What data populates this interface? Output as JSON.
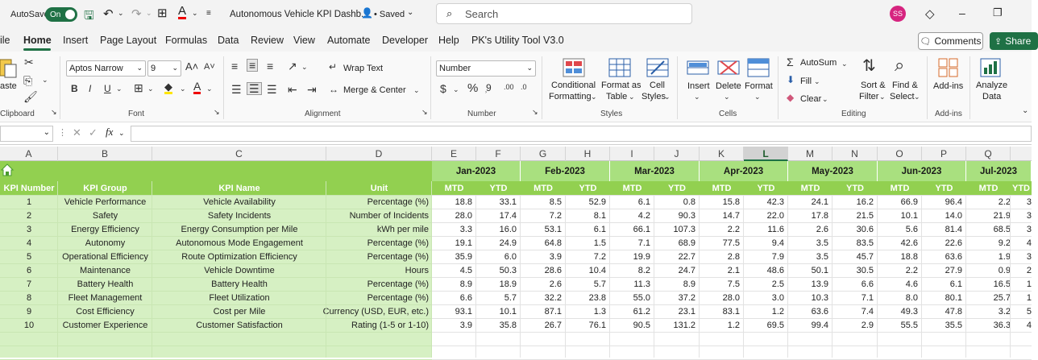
{
  "titlebar": {
    "autosave_label": "AutoSave",
    "autosave_state": "On",
    "doc_title": "Autonomous Vehicle KPI Dashb...",
    "save_status": "• Saved",
    "search_placeholder": "Search",
    "user_initials": "SS"
  },
  "menu": {
    "items": [
      "ile",
      "Home",
      "Insert",
      "Page Layout",
      "Formulas",
      "Data",
      "Review",
      "View",
      "Automate",
      "Developer",
      "Help",
      "PK's Utility Tool V3.0"
    ],
    "comments_label": "Comments",
    "share_label": "Share"
  },
  "ribbon": {
    "paste": "aste",
    "clipboard": "Clipboard",
    "font_name": "Aptos Narrow",
    "font_size": "9",
    "font_label": "Font",
    "wrap_text": "Wrap Text",
    "merge_center": "Merge & Center",
    "alignment_label": "Alignment",
    "number_format": "Number",
    "number_label": "Number",
    "conditional": "Conditional",
    "formatting": "Formatting",
    "format_as": "Format as",
    "table": "Table",
    "cell": "Cell",
    "styles_btn": "Styles",
    "styles_label": "Styles",
    "insert": "Insert",
    "delete": "Delete",
    "format": "Format",
    "cells_label": "Cells",
    "autosum": "AutoSum",
    "fill": "Fill",
    "clear": "Clear",
    "sort": "Sort &",
    "filter": "Filter",
    "find": "Find &",
    "select": "Select",
    "editing_label": "Editing",
    "addins": "Add-ins",
    "addins_label": "Add-ins",
    "analyze": "Analyze",
    "data_btn": "Data"
  },
  "formula_bar": {
    "fx": "fx"
  },
  "columns": [
    "A",
    "B",
    "C",
    "D",
    "E",
    "F",
    "G",
    "H",
    "I",
    "J",
    "K",
    "L",
    "M",
    "N",
    "O",
    "P",
    "Q"
  ],
  "selected_column": "L",
  "table": {
    "headers": [
      "KPI Number",
      "KPI Group",
      "KPI Name",
      "Unit"
    ],
    "months": [
      "Jan-2023",
      "Feb-2023",
      "Mar-2023",
      "Apr-2023",
      "May-2023",
      "Jun-2023",
      "Jul-2023"
    ],
    "sub_headers": [
      "MTD",
      "YTD"
    ],
    "rows": [
      {
        "num": "1",
        "group": "Vehicle Performance",
        "name": "Vehicle Availability",
        "unit": "Percentage (%)",
        "vals": [
          "18.8",
          "33.1",
          "8.5",
          "52.9",
          "6.1",
          "0.8",
          "15.8",
          "42.3",
          "24.1",
          "16.2",
          "66.9",
          "96.4",
          "2.2",
          "3"
        ]
      },
      {
        "num": "2",
        "group": "Safety",
        "name": "Safety Incidents",
        "unit": "Number of Incidents",
        "vals": [
          "28.0",
          "17.4",
          "7.2",
          "8.1",
          "4.2",
          "90.3",
          "14.7",
          "22.0",
          "17.8",
          "21.5",
          "10.1",
          "14.0",
          "21.9",
          "3"
        ]
      },
      {
        "num": "3",
        "group": "Energy Efficiency",
        "name": "Energy Consumption per Mile",
        "unit": "kWh per mile",
        "vals": [
          "3.3",
          "16.0",
          "53.1",
          "6.1",
          "66.1",
          "107.3",
          "2.2",
          "11.6",
          "2.6",
          "30.6",
          "5.6",
          "81.4",
          "68.5",
          "3"
        ]
      },
      {
        "num": "4",
        "group": "Autonomy",
        "name": "Autonomous Mode Engagement",
        "unit": "Percentage (%)",
        "vals": [
          "19.1",
          "24.9",
          "64.8",
          "1.5",
          "7.1",
          "68.9",
          "77.5",
          "9.4",
          "3.5",
          "83.5",
          "42.6",
          "22.6",
          "9.2",
          "4"
        ]
      },
      {
        "num": "5",
        "group": "Operational Efficiency",
        "name": "Route Optimization Efficiency",
        "unit": "Percentage (%)",
        "vals": [
          "35.9",
          "6.0",
          "3.9",
          "7.2",
          "19.9",
          "22.7",
          "2.8",
          "7.9",
          "3.5",
          "45.7",
          "18.8",
          "63.6",
          "1.9",
          "3"
        ]
      },
      {
        "num": "6",
        "group": "Maintenance",
        "name": "Vehicle Downtime",
        "unit": "Hours",
        "vals": [
          "4.5",
          "50.3",
          "28.6",
          "10.4",
          "8.2",
          "24.7",
          "2.1",
          "48.6",
          "50.1",
          "30.5",
          "2.2",
          "27.9",
          "0.9",
          "2"
        ]
      },
      {
        "num": "7",
        "group": "Battery Health",
        "name": "Battery Health",
        "unit": "Percentage (%)",
        "vals": [
          "8.9",
          "18.9",
          "2.6",
          "5.7",
          "11.3",
          "8.9",
          "7.5",
          "2.5",
          "13.9",
          "6.6",
          "4.6",
          "6.1",
          "16.5",
          "1"
        ]
      },
      {
        "num": "8",
        "group": "Fleet Management",
        "name": "Fleet Utilization",
        "unit": "Percentage (%)",
        "vals": [
          "6.6",
          "5.7",
          "32.2",
          "23.8",
          "55.0",
          "37.2",
          "28.0",
          "3.0",
          "10.3",
          "7.1",
          "8.0",
          "80.1",
          "25.7",
          "1"
        ]
      },
      {
        "num": "9",
        "group": "Cost Efficiency",
        "name": "Cost per Mile",
        "unit": "Currency (USD, EUR, etc.)",
        "vals": [
          "93.1",
          "10.1",
          "87.1",
          "1.3",
          "61.2",
          "23.1",
          "83.1",
          "1.2",
          "63.6",
          "7.4",
          "49.3",
          "47.8",
          "3.2",
          "5"
        ]
      },
      {
        "num": "10",
        "group": "Customer Experience",
        "name": "Customer Satisfaction",
        "unit": "Rating (1-5 or 1-10)",
        "vals": [
          "3.9",
          "35.8",
          "26.7",
          "76.1",
          "90.5",
          "131.2",
          "1.2",
          "69.5",
          "99.4",
          "2.9",
          "55.5",
          "35.5",
          "36.3",
          "4"
        ]
      }
    ]
  },
  "colors": {
    "accent": "#1f7145",
    "header_green": "#92d050",
    "month_green": "#a9e07f",
    "cell_green": "#d6f0c3"
  }
}
